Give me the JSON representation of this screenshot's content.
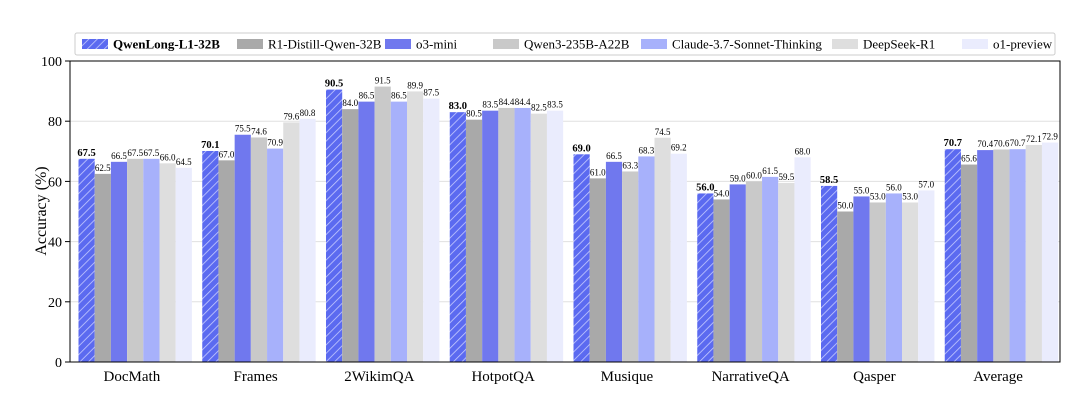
{
  "chart_data": {
    "type": "bar",
    "xlabel": "",
    "ylabel": "Accuracy (%)",
    "ylim": [
      0,
      100
    ],
    "yticks": [
      "0",
      "20",
      "40",
      "60",
      "80",
      "100"
    ],
    "grid": "horizontal",
    "legend_placement": "top",
    "categories": [
      "DocMath",
      "Frames",
      "2WikimQA",
      "HotpotQA",
      "Musique",
      "NarrativeQA",
      "Qasper",
      "Average"
    ],
    "series": [
      {
        "name": "QwenLong-L1-32B",
        "color": "#5b6af0",
        "pattern": "hatch",
        "bold": true,
        "values": [
          67.5,
          70.1,
          90.5,
          83.0,
          69.0,
          56.0,
          58.5,
          70.7
        ],
        "labels": [
          "67.5",
          "70.1",
          "90.5",
          "83.0",
          "69.0",
          "56.0",
          "58.5",
          "70.7"
        ]
      },
      {
        "name": "R1-Distill-Qwen-32B",
        "color": "#a9a9a9",
        "values": [
          62.5,
          67.0,
          84.0,
          80.5,
          61.0,
          54.0,
          50.0,
          65.6
        ],
        "labels": [
          "62.5",
          "67.0",
          "84.0",
          "80.5",
          "61.0",
          "54.0",
          "50.0",
          "65.6"
        ]
      },
      {
        "name": "o3-mini",
        "color": "#7078ee",
        "values": [
          66.5,
          75.5,
          86.5,
          83.5,
          66.5,
          59.0,
          55.0,
          70.4
        ],
        "labels": [
          "66.5",
          "75.5",
          "86.5",
          "83.5",
          "66.5",
          "59.0",
          "55.0",
          "70.4"
        ]
      },
      {
        "name": "Qwen3-235B-A22B",
        "color": "#c9c9c9",
        "values": [
          67.5,
          74.6,
          91.5,
          84.4,
          63.3,
          60.0,
          53.0,
          70.6
        ],
        "labels": [
          "67.5",
          "74.6",
          "91.5",
          "84.4",
          "63.3",
          "60.0",
          "53.0",
          "70.6"
        ]
      },
      {
        "name": "Claude-3.7-Sonnet-Thinking",
        "color": "#a7b1fb",
        "values": [
          67.5,
          70.9,
          86.5,
          84.4,
          68.3,
          61.5,
          56.0,
          70.7
        ],
        "labels": [
          "67.5",
          "70.9",
          "86.5",
          "84.4",
          "68.3",
          "61.5",
          "56.0",
          "70.7"
        ]
      },
      {
        "name": "DeepSeek-R1",
        "color": "#dedede",
        "values": [
          66.0,
          79.6,
          89.9,
          82.5,
          74.5,
          59.5,
          53.0,
          72.1
        ],
        "labels": [
          "66.0",
          "79.6",
          "89.9",
          "82.5",
          "74.5",
          "59.5",
          "53.0",
          "72.1"
        ]
      },
      {
        "name": "o1-preview",
        "color": "#eaecfd",
        "values": [
          64.5,
          80.8,
          87.5,
          83.5,
          69.2,
          68.0,
          57.0,
          72.9
        ],
        "labels": [
          "64.5",
          "80.8",
          "87.5",
          "83.5",
          "69.2",
          "68.0",
          "57.0",
          "72.9"
        ]
      }
    ]
  }
}
